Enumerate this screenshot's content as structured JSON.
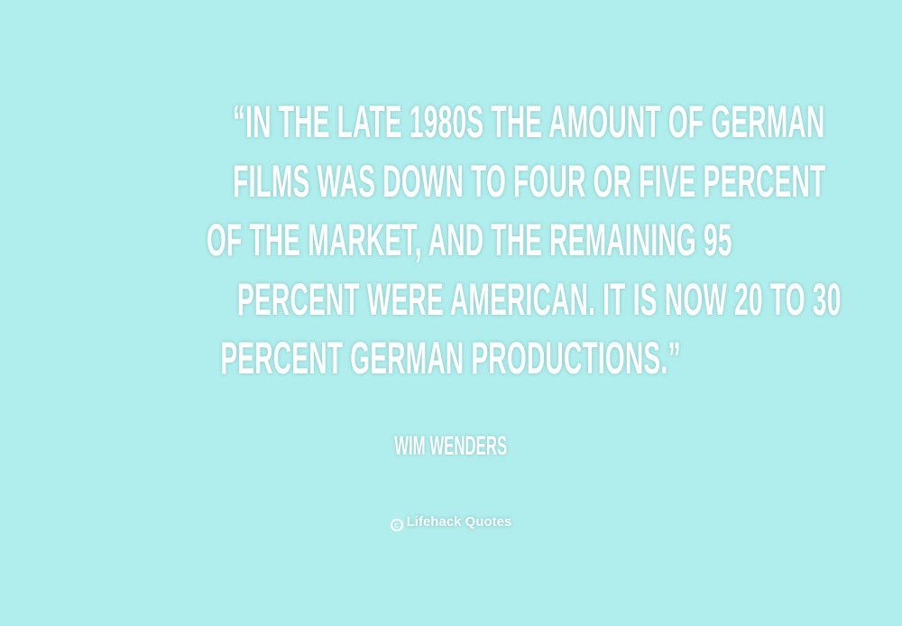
{
  "quote": {
    "lines": [
      "“IN THE LATE 1980S THE AMOUNT OF GERMAN",
      "FILMS WAS DOWN TO FOUR OR FIVE PERCENT",
      "OF THE MARKET, AND THE REMAINING 95",
      "PERCENT WERE AMERICAN. IT IS NOW 20 TO 30",
      "PERCENT GERMAN PRODUCTIONS.”"
    ],
    "author": "WIM WENDERS"
  },
  "branding": {
    "name": "Lifehack Quotes",
    "icon": "copyright-circle-icon"
  },
  "colors": {
    "background": "#b0eeee",
    "text": "#ffffff"
  }
}
